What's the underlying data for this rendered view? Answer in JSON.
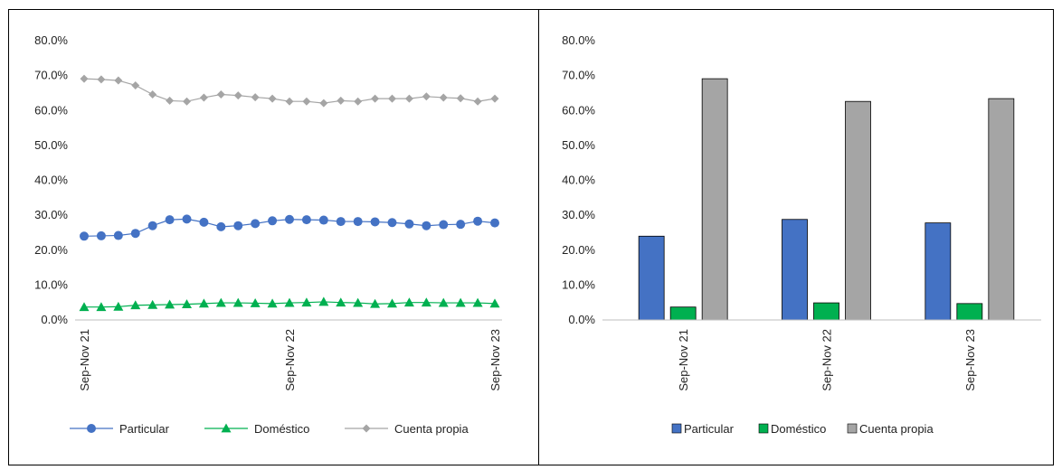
{
  "chart_data": [
    {
      "type": "line",
      "title": "",
      "xlabel": "",
      "ylabel": "",
      "ylim": [
        0,
        80
      ],
      "yticks": [
        "0.0%",
        "10.0%",
        "20.0%",
        "30.0%",
        "40.0%",
        "50.0%",
        "60.0%",
        "70.0%",
        "80.0%"
      ],
      "x_tick_labels": [
        {
          "index": 0,
          "label": "Sep-Nov 21"
        },
        {
          "index": 12,
          "label": "Sep-Nov 22"
        },
        {
          "index": 24,
          "label": "Sep-Nov 23"
        }
      ],
      "grid": false,
      "legend_position": "bottom",
      "series": [
        {
          "name": "Particular",
          "color": "#4472C4",
          "marker": "circle",
          "values": [
            24.0,
            24.1,
            24.2,
            24.8,
            27.0,
            28.7,
            28.9,
            28.0,
            26.7,
            27.0,
            27.6,
            28.4,
            28.8,
            28.7,
            28.6,
            28.2,
            28.2,
            28.1,
            27.9,
            27.5,
            27.0,
            27.3,
            27.4,
            28.3,
            27.8
          ]
        },
        {
          "name": "Doméstico",
          "color": "#00B050",
          "marker": "triangle",
          "values": [
            3.7,
            3.7,
            3.8,
            4.2,
            4.3,
            4.4,
            4.5,
            4.7,
            4.9,
            4.9,
            4.8,
            4.7,
            4.9,
            5.0,
            5.2,
            5.0,
            4.9,
            4.6,
            4.7,
            5.0,
            5.0,
            4.9,
            4.9,
            4.9,
            4.7
          ]
        },
        {
          "name": "Cuenta propia",
          "color": "#A5A5A5",
          "marker": "diamond",
          "values": [
            69.1,
            68.9,
            68.6,
            67.2,
            64.6,
            62.8,
            62.6,
            63.7,
            64.6,
            64.3,
            63.8,
            63.4,
            62.6,
            62.6,
            62.1,
            62.8,
            62.6,
            63.4,
            63.4,
            63.4,
            64.0,
            63.7,
            63.5,
            62.6,
            63.4
          ]
        }
      ]
    },
    {
      "type": "bar",
      "title": "",
      "xlabel": "",
      "ylabel": "",
      "ylim": [
        0,
        80
      ],
      "yticks": [
        "0.0%",
        "10.0%",
        "20.0%",
        "30.0%",
        "40.0%",
        "50.0%",
        "60.0%",
        "70.0%",
        "80.0%"
      ],
      "categories": [
        "Sep-Nov 21",
        "Sep-Nov 22",
        "Sep-Nov 23"
      ],
      "grid": false,
      "legend_position": "bottom",
      "series": [
        {
          "name": "Particular",
          "color": "#4472C4",
          "values": [
            24.0,
            28.8,
            27.8
          ]
        },
        {
          "name": "Doméstico",
          "color": "#00B050",
          "values": [
            3.7,
            4.9,
            4.7
          ]
        },
        {
          "name": "Cuenta propia",
          "color": "#A5A5A5",
          "values": [
            69.1,
            62.6,
            63.4
          ]
        }
      ]
    }
  ]
}
